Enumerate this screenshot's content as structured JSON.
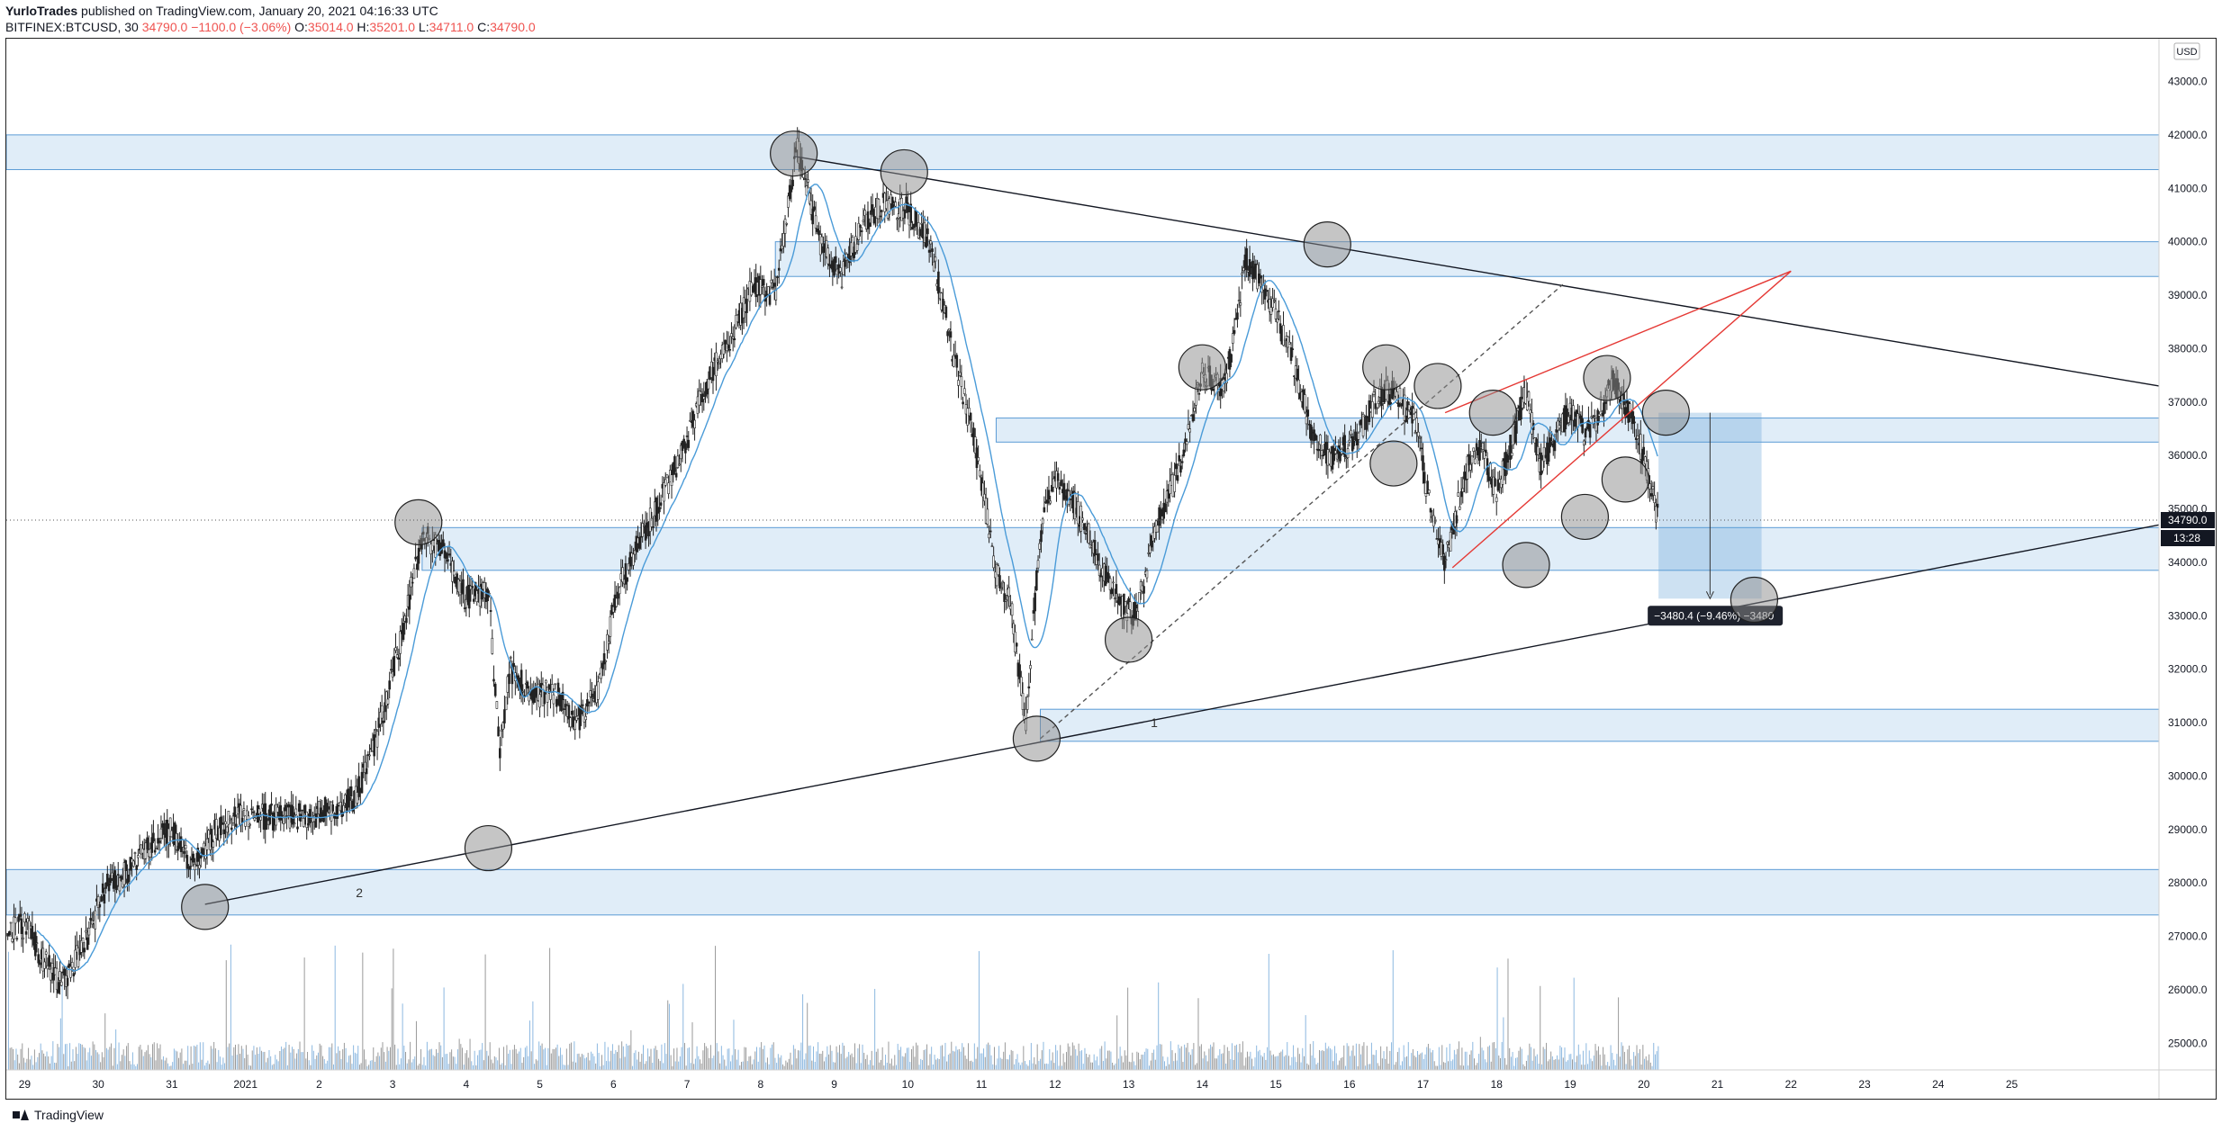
{
  "header": {
    "author": "YurloTrades",
    "published_text": "published on TradingView.com, January 20, 2021 04:16:33 UTC",
    "symbol": "BITFINEX:BTCUSD, 30",
    "last": "34790.0",
    "change": "−1100.0 (−3.06%)",
    "o_label": "O:",
    "o_value": "35014.0",
    "h_label": "H:",
    "h_value": "35201.0",
    "l_label": "L:",
    "l_value": "34711.0",
    "c_label": "C:",
    "c_value": "34790.0"
  },
  "footer": {
    "brand": "TradingView"
  },
  "chart_data": {
    "type": "candlestick",
    "currency": "USD",
    "last_price_label": "34790.0",
    "countdown_label": "13:28",
    "ylim": [
      24500,
      43800
    ],
    "yticks": [
      25000,
      26000,
      27000,
      28000,
      29000,
      30000,
      31000,
      32000,
      33000,
      34000,
      35000,
      36000,
      37000,
      38000,
      39000,
      40000,
      41000,
      42000,
      43000
    ],
    "ytick_labels": [
      "25000.0",
      "26000.0",
      "27000.0",
      "28000.0",
      "29000.0",
      "30000.0",
      "31000.0",
      "32000.0",
      "33000.0",
      "34000.0",
      "35000.0",
      "36000.0",
      "37000.0",
      "38000.0",
      "39000.0",
      "40000.0",
      "41000.0",
      "42000.0",
      "43000.0"
    ],
    "x_range_days": [
      -3.25,
      26.0
    ],
    "xticks": [
      {
        "day": -3,
        "label": "29"
      },
      {
        "day": -2,
        "label": "30"
      },
      {
        "day": -1,
        "label": "31"
      },
      {
        "day": 0,
        "label": "2021"
      },
      {
        "day": 1,
        "label": "2"
      },
      {
        "day": 2,
        "label": "3"
      },
      {
        "day": 3,
        "label": "4"
      },
      {
        "day": 4,
        "label": "5"
      },
      {
        "day": 5,
        "label": "6"
      },
      {
        "day": 6,
        "label": "7"
      },
      {
        "day": 7,
        "label": "8"
      },
      {
        "day": 8,
        "label": "9"
      },
      {
        "day": 9,
        "label": "10"
      },
      {
        "day": 10,
        "label": "11"
      },
      {
        "day": 11,
        "label": "12"
      },
      {
        "day": 12,
        "label": "13"
      },
      {
        "day": 13,
        "label": "14"
      },
      {
        "day": 14,
        "label": "15"
      },
      {
        "day": 15,
        "label": "16"
      },
      {
        "day": 16,
        "label": "17"
      },
      {
        "day": 17,
        "label": "18"
      },
      {
        "day": 18,
        "label": "19"
      },
      {
        "day": 19,
        "label": "20"
      },
      {
        "day": 20,
        "label": "21"
      },
      {
        "day": 21,
        "label": "22"
      },
      {
        "day": 22,
        "label": "23"
      },
      {
        "day": 23,
        "label": "24"
      },
      {
        "day": 24,
        "label": "25"
      }
    ],
    "price_path": [
      [
        -3.25,
        27100
      ],
      [
        -3.0,
        27200
      ],
      [
        -2.8,
        26700
      ],
      [
        -2.5,
        26100
      ],
      [
        -2.2,
        26800
      ],
      [
        -1.9,
        27900
      ],
      [
        -1.6,
        28200
      ],
      [
        -1.3,
        28700
      ],
      [
        -1.0,
        29000
      ],
      [
        -0.7,
        28300
      ],
      [
        -0.4,
        29000
      ],
      [
        0.0,
        29300
      ],
      [
        0.5,
        29200
      ],
      [
        1.0,
        29300
      ],
      [
        1.5,
        29600
      ],
      [
        1.8,
        30800
      ],
      [
        2.1,
        32500
      ],
      [
        2.4,
        34500
      ],
      [
        2.7,
        34200
      ],
      [
        3.0,
        33300
      ],
      [
        3.3,
        33500
      ],
      [
        3.45,
        30500
      ],
      [
        3.6,
        32000
      ],
      [
        3.9,
        31500
      ],
      [
        4.2,
        31600
      ],
      [
        4.5,
        31000
      ],
      [
        4.8,
        31600
      ],
      [
        5.0,
        33200
      ],
      [
        5.3,
        34300
      ],
      [
        5.6,
        35000
      ],
      [
        6.0,
        36300
      ],
      [
        6.3,
        37500
      ],
      [
        6.6,
        38200
      ],
      [
        6.9,
        39200
      ],
      [
        7.2,
        39000
      ],
      [
        7.5,
        41800
      ],
      [
        7.8,
        40000
      ],
      [
        8.1,
        39300
      ],
      [
        8.4,
        40400
      ],
      [
        8.7,
        40700
      ],
      [
        9.0,
        40600
      ],
      [
        9.3,
        40000
      ],
      [
        9.6,
        38000
      ],
      [
        9.9,
        36300
      ],
      [
        10.2,
        33800
      ],
      [
        10.4,
        33200
      ],
      [
        10.6,
        31000
      ],
      [
        10.8,
        34500
      ],
      [
        11.0,
        35600
      ],
      [
        11.3,
        35000
      ],
      [
        11.6,
        34000
      ],
      [
        11.9,
        33200
      ],
      [
        12.1,
        33000
      ],
      [
        12.4,
        34800
      ],
      [
        12.7,
        35800
      ],
      [
        13.0,
        37600
      ],
      [
        13.3,
        37200
      ],
      [
        13.6,
        39700
      ],
      [
        13.9,
        39000
      ],
      [
        14.2,
        37900
      ],
      [
        14.5,
        36400
      ],
      [
        14.8,
        35900
      ],
      [
        15.1,
        36400
      ],
      [
        15.4,
        37100
      ],
      [
        15.6,
        37200
      ],
      [
        15.9,
        36600
      ],
      [
        16.1,
        35000
      ],
      [
        16.3,
        34000
      ],
      [
        16.6,
        35800
      ],
      [
        16.8,
        36200
      ],
      [
        17.0,
        35300
      ],
      [
        17.2,
        36200
      ],
      [
        17.4,
        37200
      ],
      [
        17.6,
        35800
      ],
      [
        17.8,
        36300
      ],
      [
        18.0,
        36900
      ],
      [
        18.2,
        36400
      ],
      [
        18.4,
        36800
      ],
      [
        18.6,
        37400
      ],
      [
        18.8,
        36800
      ],
      [
        19.0,
        36000
      ],
      [
        19.15,
        35000
      ],
      [
        19.2,
        34790
      ]
    ],
    "volume_path": [
      [
        -3.25,
        0.1
      ],
      [
        19.2,
        0.1
      ]
    ],
    "zones": [
      {
        "from": 41350,
        "to": 42000,
        "x_start": -3.25
      },
      {
        "from": 39350,
        "to": 40000,
        "x_start": 7.2
      },
      {
        "from": 36250,
        "to": 36700,
        "x_start": 10.2
      },
      {
        "from": 33850,
        "to": 34650,
        "x_start": 2.4
      },
      {
        "from": 30650,
        "to": 31250,
        "x_start": 10.8
      },
      {
        "from": 27400,
        "to": 28250,
        "x_start": -3.25
      }
    ],
    "trendlines": [
      {
        "role": "descending-resistance",
        "p1": [
          7.45,
          41600
        ],
        "p2": [
          26.0,
          37300
        ],
        "color": "#131722"
      },
      {
        "role": "ascending-support",
        "p1": [
          -0.55,
          27600
        ],
        "p2": [
          26.0,
          34700
        ],
        "color": "#131722"
      },
      {
        "role": "wedge-upper",
        "p1": [
          16.3,
          36800
        ],
        "p2": [
          21.0,
          39450
        ],
        "color": "#e53935"
      },
      {
        "role": "wedge-lower",
        "p1": [
          16.4,
          33900
        ],
        "p2": [
          21.0,
          39450
        ],
        "color": "#e53935"
      },
      {
        "role": "dashed-trend",
        "p1": [
          10.8,
          30700
        ],
        "p2": [
          17.9,
          39200
        ],
        "color": "#555555",
        "dashed": true
      }
    ],
    "circles": [
      [
        -0.55,
        27550
      ],
      [
        3.3,
        28650
      ],
      [
        2.35,
        34750
      ],
      [
        7.45,
        41650
      ],
      [
        8.95,
        41300
      ],
      [
        10.75,
        30700
      ],
      [
        12.0,
        32550
      ],
      [
        13.0,
        37650
      ],
      [
        14.7,
        39950
      ],
      [
        15.5,
        37650
      ],
      [
        15.6,
        35850
      ],
      [
        16.2,
        37300
      ],
      [
        16.95,
        36800
      ],
      [
        17.4,
        33950
      ],
      [
        18.2,
        34850
      ],
      [
        18.5,
        37450
      ],
      [
        18.75,
        35550
      ],
      [
        19.3,
        36800
      ],
      [
        20.5,
        33300
      ]
    ],
    "measure": {
      "x1": 19.2,
      "x2": 20.6,
      "from": 36800,
      "to": 33320,
      "label": "−3480.4 (−9.46%) −3480"
    },
    "annotations": [
      {
        "text": "1",
        "x": 12.3,
        "y": 31000
      },
      {
        "text": "2",
        "x": 1.5,
        "y": 27820
      }
    ]
  }
}
